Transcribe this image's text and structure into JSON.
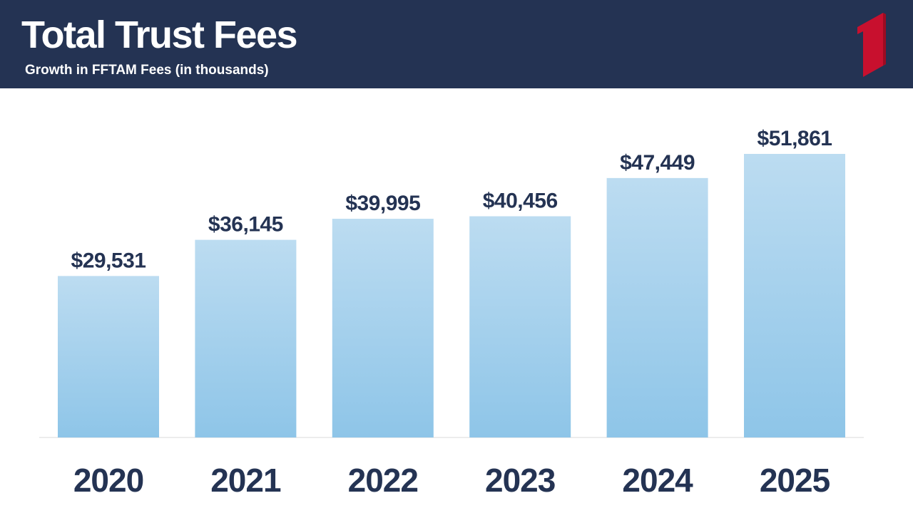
{
  "header": {
    "title": "Total Trust Fees",
    "subtitle": "Growth in FFTAM Fees (in thousands)",
    "background_color": "#243353",
    "logo_icon": "red-numeral-one-logo",
    "logo_color": "#C8102E"
  },
  "chart_data": {
    "type": "bar",
    "categories": [
      "2020",
      "2021",
      "2022",
      "2023",
      "2024",
      "2025"
    ],
    "values": [
      29531,
      36145,
      39995,
      40456,
      47449,
      51861
    ],
    "value_labels": [
      "$29,531",
      "$36,145",
      "$39,995",
      "$40,456",
      "$47,449",
      "$51,861"
    ],
    "title": "Total Trust Fees",
    "subtitle": "Growth in FFTAM Fees (in thousands)",
    "xlabel": "",
    "ylabel": "",
    "grid": false,
    "bar_color_top": "#BCDCF1",
    "bar_color_bottom": "#8EC5E8",
    "label_color": "#243353"
  }
}
